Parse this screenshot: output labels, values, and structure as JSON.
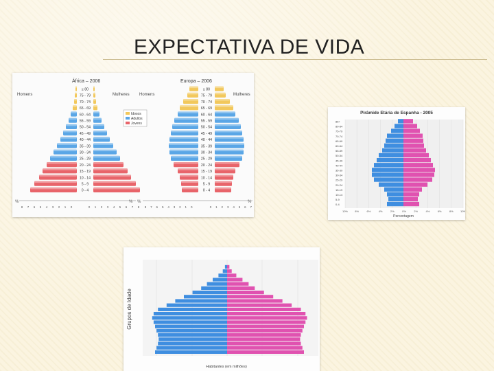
{
  "slide": {
    "title": "EXPECTATIVA DE VIDA"
  },
  "colors": {
    "blue": "#5aa6e6",
    "pink_red": "#e8646a",
    "yellow": "#f2c85c",
    "magenta": "#e052b0",
    "bar_blue": "#3f8ee0",
    "grey_axis": "#bdbdbd"
  },
  "figures": {
    "africa_europe": {
      "africa_title": "África – 2006",
      "europe_title": "Europa – 2006",
      "men": "Homens",
      "women": "Mulheres",
      "legend": [
        "Idosos",
        "Adultos",
        "Jovens"
      ],
      "pct": "%",
      "age_groups": [
        "0 - 4",
        "5 - 9",
        "10 - 14",
        "15 - 19",
        "20 - 24",
        "25 - 29",
        "30 - 34",
        "35 - 39",
        "40 - 44",
        "45 - 49",
        "50 - 54",
        "55 - 59",
        "60 - 64",
        "65 - 69",
        "70 - 74",
        "75 - 79",
        "≥ 80"
      ],
      "axis_left": [
        "8",
        "7",
        "6",
        "5",
        "4",
        "3",
        "2",
        "1",
        "0"
      ],
      "axis_right": [
        "0",
        "1",
        "2",
        "3",
        "4",
        "5",
        "6",
        "7",
        "8"
      ]
    },
    "spain": {
      "title": "Pirâmide Etária de Espanha - 2005",
      "men": "HOMBRES",
      "women": "MUJERES",
      "xlabel": "Percentagem",
      "ages": [
        "0-4",
        "5-9",
        "10-14",
        "15-19",
        "20-24",
        "25-29",
        "30-34",
        "35-39",
        "40-44",
        "45-49",
        "50-54",
        "55-59",
        "60-64",
        "65-69",
        "70-74",
        "75-79",
        "80-84",
        "85+"
      ],
      "ticks": [
        "10%",
        "8%",
        "6%",
        "4%",
        "2%",
        "0%",
        "2%",
        "4%",
        "6%",
        "8%",
        "10%"
      ]
    },
    "world": {
      "ylabel": "Grupos de Idade",
      "xlabel": "Habitantes (em milhões)",
      "male_symbol": "♂",
      "female_symbol": "♀"
    }
  }
}
